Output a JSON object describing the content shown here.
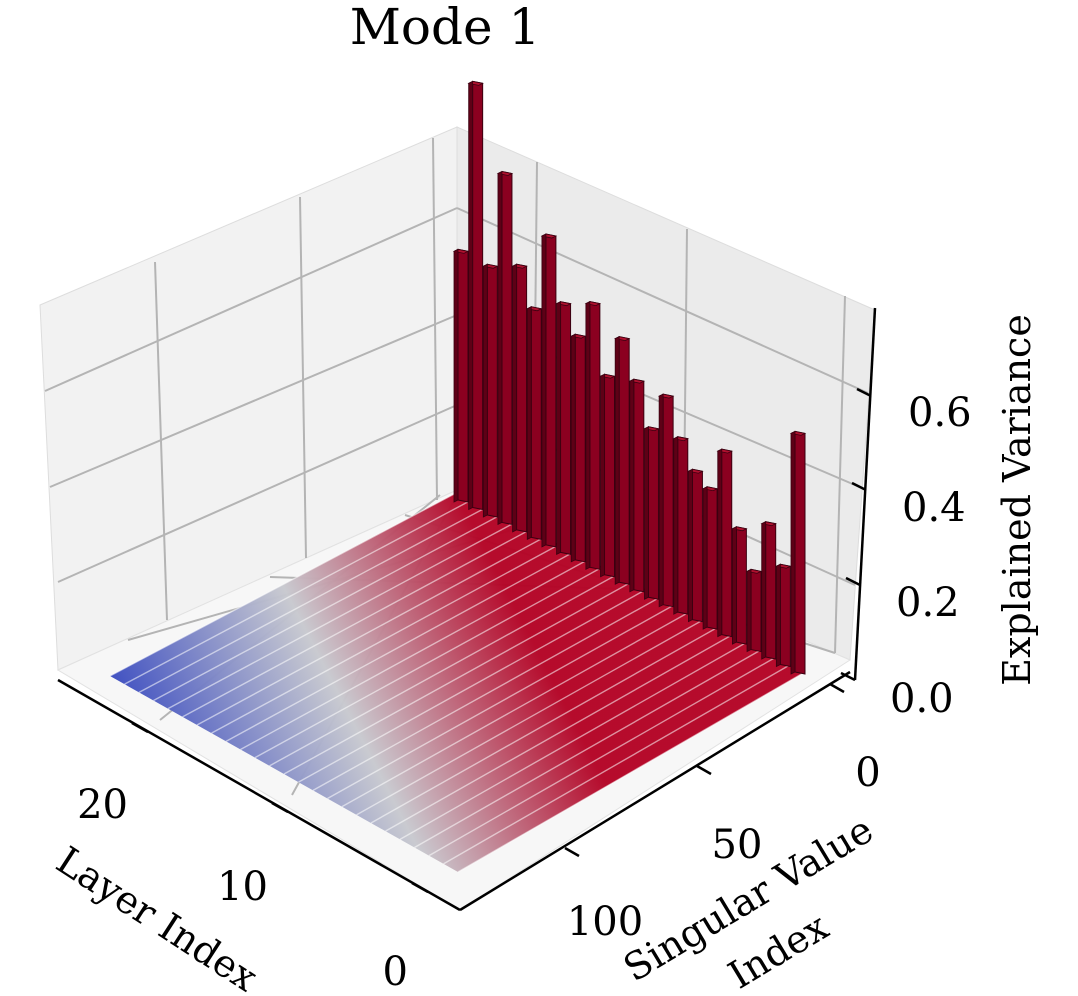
{
  "chart_data": {
    "type": "bar3d",
    "title": "Mode 1",
    "xlabel": "Layer Index",
    "ylabel": [
      "Singular Value",
      "Index"
    ],
    "zlabel": "Explained Variance",
    "x_ticks": [
      "0",
      "10",
      "20"
    ],
    "y_ticks": [
      "0",
      "50",
      "100"
    ],
    "z_ticks": [
      "0.0",
      "0.2",
      "0.4",
      "0.6"
    ],
    "xlim": [
      0,
      24
    ],
    "ylim": [
      0,
      128
    ],
    "zlim": [
      0,
      0.75
    ],
    "grid": true,
    "colormap": "coolwarm",
    "layers": [
      0,
      1,
      2,
      3,
      4,
      5,
      6,
      7,
      8,
      9,
      10,
      11,
      12,
      13,
      14,
      15,
      16,
      17,
      18,
      19,
      20,
      21,
      22,
      23
    ],
    "first_singular_value_variance": [
      0.48,
      0.2,
      0.27,
      0.16,
      0.23,
      0.37,
      0.28,
      0.3,
      0.35,
      0.42,
      0.34,
      0.42,
      0.49,
      0.4,
      0.53,
      0.45,
      0.5,
      0.62,
      0.46,
      0.53,
      0.7,
      0.5,
      0.85,
      0.5
    ],
    "other_singular_values_variance": "near 0.0, decaying with index"
  }
}
